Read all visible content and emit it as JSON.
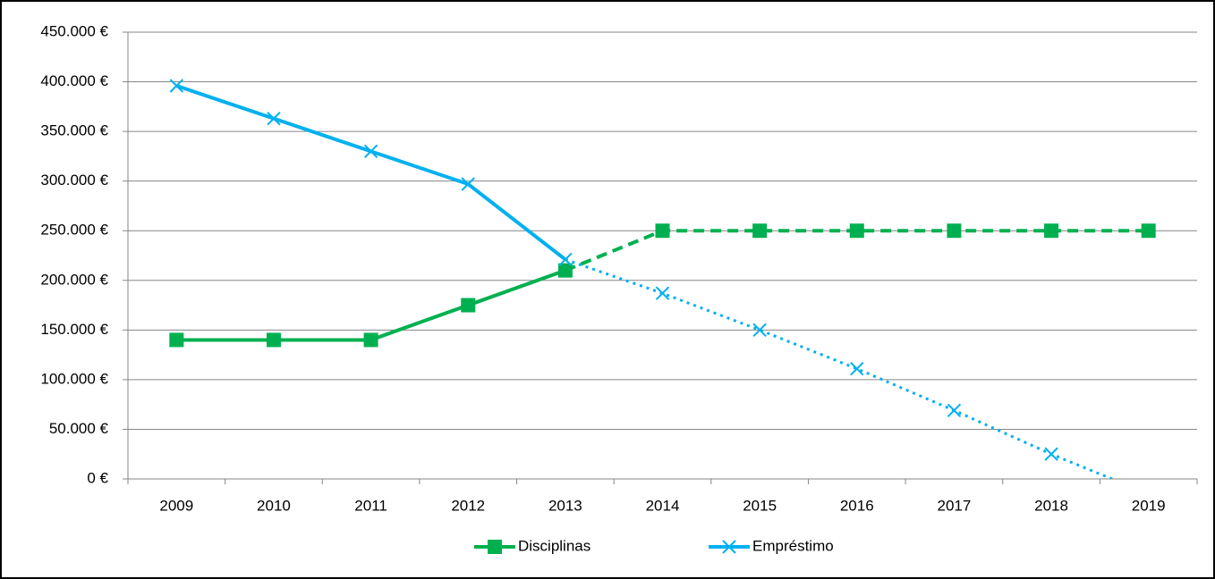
{
  "chart_data": {
    "type": "line",
    "categories": [
      "2009",
      "2010",
      "2011",
      "2012",
      "2013",
      "2014",
      "2015",
      "2016",
      "2017",
      "2018",
      "2019"
    ],
    "series": [
      {
        "name": "Disciplinas",
        "color": "#00b050",
        "marker": "square",
        "projected_from": "2013",
        "projection_dash": "dashed",
        "values": [
          140000,
          140000,
          140000,
          175000,
          210000,
          250000,
          250000,
          250000,
          250000,
          250000,
          250000
        ]
      },
      {
        "name": "Empréstimo",
        "color": "#00b0f0",
        "marker": "x",
        "projected_from": "2013",
        "projection_dash": "dotted",
        "values": [
          396000,
          363000,
          330000,
          297000,
          221000,
          187000,
          150000,
          111000,
          69000,
          25000,
          -15000
        ]
      }
    ],
    "ylim": [
      0,
      450000
    ],
    "yticks": [
      {
        "value": 0,
        "label": "0 €"
      },
      {
        "value": 50000,
        "label": "50.000 €"
      },
      {
        "value": 100000,
        "label": "100.000 €"
      },
      {
        "value": 150000,
        "label": "150.000 €"
      },
      {
        "value": 200000,
        "label": "200.000 €"
      },
      {
        "value": 250000,
        "label": "250.000 €"
      },
      {
        "value": 300000,
        "label": "300.000 €"
      },
      {
        "value": 350000,
        "label": "350.000 €"
      },
      {
        "value": 400000,
        "label": "400.000 €"
      },
      {
        "value": 450000,
        "label": "450.000 €"
      }
    ],
    "grid": true,
    "legend": "bottom"
  }
}
